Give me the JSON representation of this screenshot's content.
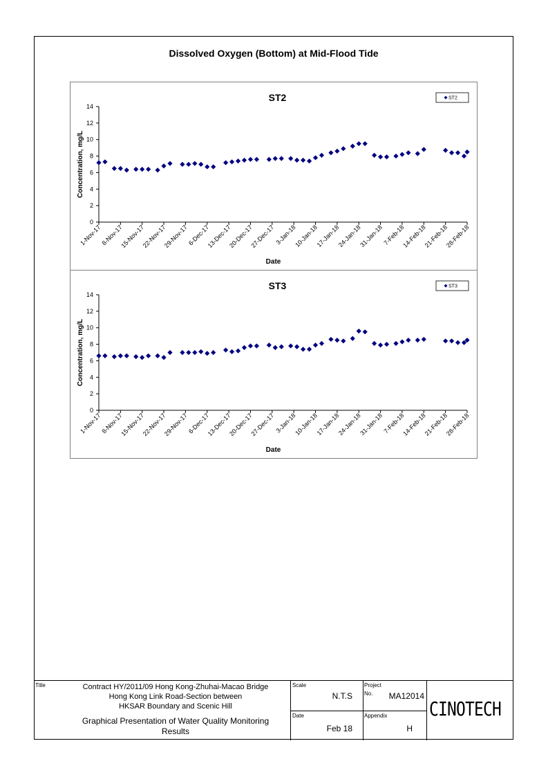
{
  "page": {
    "title": "Dissolved Oxygen (Bottom) at Mid-Flood Tide"
  },
  "chart_data": [
    {
      "type": "scatter",
      "title": "ST2",
      "xlabel": "Date",
      "ylabel": "Concentration, mg/L",
      "ylim": [
        0,
        14
      ],
      "yticks": [
        "0",
        "2",
        "4",
        "6",
        "8",
        "10",
        "12",
        "14"
      ],
      "xlim": [
        "2017-11-01",
        "2018-02-28"
      ],
      "xticks": [
        "1-Nov-17",
        "8-Nov-17",
        "15-Nov-17",
        "22-Nov-17",
        "29-Nov-17",
        "6-Dec-17",
        "13-Dec-17",
        "20-Dec-17",
        "27-Dec-17",
        "3-Jan-18",
        "10-Jan-18",
        "17-Jan-18",
        "24-Jan-18",
        "31-Jan-18",
        "7-Feb-18",
        "14-Feb-18",
        "21-Feb-18",
        "28-Feb-18"
      ],
      "legend": "top-right",
      "grid": false,
      "marker_color": "#000080",
      "series": [
        {
          "name": "ST2",
          "x": [
            "2017-11-01",
            "2017-11-03",
            "2017-11-06",
            "2017-11-08",
            "2017-11-10",
            "2017-11-13",
            "2017-11-15",
            "2017-11-17",
            "2017-11-20",
            "2017-11-22",
            "2017-11-24",
            "2017-11-28",
            "2017-11-30",
            "2017-12-02",
            "2017-12-04",
            "2017-12-06",
            "2017-12-08",
            "2017-12-12",
            "2017-12-14",
            "2017-12-16",
            "2017-12-18",
            "2017-12-20",
            "2017-12-22",
            "2017-12-26",
            "2017-12-28",
            "2017-12-30",
            "2018-01-02",
            "2018-01-04",
            "2018-01-06",
            "2018-01-08",
            "2018-01-10",
            "2018-01-12",
            "2018-01-15",
            "2018-01-17",
            "2018-01-19",
            "2018-01-22",
            "2018-01-24",
            "2018-01-26",
            "2018-01-29",
            "2018-01-31",
            "2018-02-02",
            "2018-02-05",
            "2018-02-07",
            "2018-02-09",
            "2018-02-12",
            "2018-02-14",
            "2018-02-21",
            "2018-02-23",
            "2018-02-25",
            "2018-02-27",
            "2018-02-28"
          ],
          "y": [
            7.2,
            7.3,
            6.5,
            6.5,
            6.3,
            6.4,
            6.4,
            6.4,
            6.3,
            6.8,
            7.1,
            7.0,
            7.0,
            7.1,
            7.0,
            6.7,
            6.7,
            7.2,
            7.3,
            7.4,
            7.5,
            7.6,
            7.6,
            7.6,
            7.7,
            7.7,
            7.7,
            7.5,
            7.5,
            7.4,
            7.8,
            8.1,
            8.4,
            8.6,
            8.9,
            9.2,
            9.5,
            9.5,
            8.1,
            7.9,
            7.9,
            8.0,
            8.2,
            8.4,
            8.3,
            8.8,
            8.7,
            8.4,
            8.4,
            8.0,
            8.5
          ]
        }
      ]
    },
    {
      "type": "scatter",
      "title": "ST3",
      "xlabel": "Date",
      "ylabel": "Concentration, mg/L",
      "ylim": [
        0,
        14
      ],
      "yticks": [
        "0",
        "2",
        "4",
        "6",
        "8",
        "10",
        "12",
        "14"
      ],
      "xlim": [
        "2017-11-01",
        "2018-02-28"
      ],
      "xticks": [
        "1-Nov-17",
        "8-Nov-17",
        "15-Nov-17",
        "22-Nov-17",
        "29-Nov-17",
        "6-Dec-17",
        "13-Dec-17",
        "20-Dec-17",
        "27-Dec-17",
        "3-Jan-18",
        "10-Jan-18",
        "17-Jan-18",
        "24-Jan-18",
        "31-Jan-18",
        "7-Feb-18",
        "14-Feb-18",
        "21-Feb-18",
        "28-Feb-18"
      ],
      "legend": "top-right",
      "grid": false,
      "marker_color": "#000080",
      "series": [
        {
          "name": "ST3",
          "x": [
            "2017-11-01",
            "2017-11-03",
            "2017-11-06",
            "2017-11-08",
            "2017-11-10",
            "2017-11-13",
            "2017-11-15",
            "2017-11-17",
            "2017-11-20",
            "2017-11-22",
            "2017-11-24",
            "2017-11-28",
            "2017-11-30",
            "2017-12-02",
            "2017-12-04",
            "2017-12-06",
            "2017-12-08",
            "2017-12-12",
            "2017-12-14",
            "2017-12-16",
            "2017-12-18",
            "2017-12-20",
            "2017-12-22",
            "2017-12-26",
            "2017-12-28",
            "2017-12-30",
            "2018-01-02",
            "2018-01-04",
            "2018-01-06",
            "2018-01-08",
            "2018-01-10",
            "2018-01-12",
            "2018-01-15",
            "2018-01-17",
            "2018-01-19",
            "2018-01-22",
            "2018-01-24",
            "2018-01-26",
            "2018-01-29",
            "2018-01-31",
            "2018-02-02",
            "2018-02-05",
            "2018-02-07",
            "2018-02-09",
            "2018-02-12",
            "2018-02-14",
            "2018-02-21",
            "2018-02-23",
            "2018-02-25",
            "2018-02-27",
            "2018-02-28"
          ],
          "y": [
            6.6,
            6.6,
            6.5,
            6.6,
            6.6,
            6.5,
            6.4,
            6.6,
            6.6,
            6.4,
            7.0,
            7.0,
            7.0,
            7.0,
            7.1,
            6.9,
            7.0,
            7.3,
            7.1,
            7.2,
            7.6,
            7.8,
            7.8,
            7.9,
            7.6,
            7.7,
            7.8,
            7.7,
            7.4,
            7.4,
            7.9,
            8.1,
            8.6,
            8.5,
            8.4,
            8.7,
            9.6,
            9.5,
            8.1,
            7.9,
            8.0,
            8.1,
            8.3,
            8.5,
            8.5,
            8.6,
            8.4,
            8.4,
            8.2,
            8.2,
            8.5
          ]
        }
      ]
    }
  ],
  "title_block": {
    "title_label": "Title",
    "title_lines": [
      "Contract HY/2011/09 Hong Kong-Zhuhai-Macao Bridge",
      "Hong Kong Link Road-Section between",
      "HKSAR Boundary and Scenic Hill"
    ],
    "subtitle_lines": [
      "Graphical Presentation of Water Quality Monitoring",
      "Results"
    ],
    "scale_label": "Scale",
    "scale_value": "N.T.S",
    "project_label": "Project",
    "no_label": "No.",
    "project_no": "MA12014",
    "date_label": "Date",
    "date_value": "Feb 18",
    "appendix_label": "Appendix",
    "appendix_value": "H",
    "logo_text": "CINOTECH"
  }
}
